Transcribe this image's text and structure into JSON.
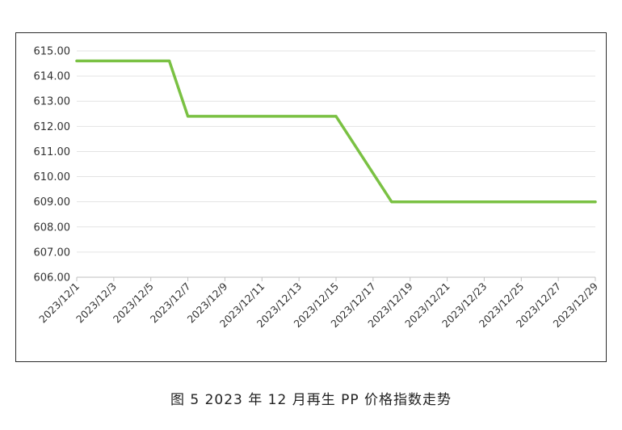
{
  "caption": "图 5  2023 年 12 月再生 PP 价格指数走势",
  "chart_data": {
    "type": "line",
    "title": "",
    "xlabel": "",
    "ylabel": "",
    "ylim": [
      606,
      615
    ],
    "yticks": [
      "606.00",
      "607.00",
      "608.00",
      "609.00",
      "610.00",
      "611.00",
      "612.00",
      "613.00",
      "614.00",
      "615.00"
    ],
    "xticks": [
      "2023/12/1",
      "2023/12/3",
      "2023/12/5",
      "2023/12/7",
      "2023/12/9",
      "2023/12/11",
      "2023/12/13",
      "2023/12/15",
      "2023/12/17",
      "2023/12/19",
      "2023/12/21",
      "2023/12/23",
      "2023/12/25",
      "2023/12/27",
      "2023/12/29"
    ],
    "grid": true,
    "line_color": "#7ac143",
    "series": [
      {
        "x": [
          "2023/12/1",
          "2023/12/6",
          "2023/12/7",
          "2023/12/15",
          "2023/12/18",
          "2023/12/29"
        ],
        "values": [
          614.6,
          614.6,
          612.4,
          612.4,
          609.0,
          609.0
        ]
      }
    ]
  }
}
